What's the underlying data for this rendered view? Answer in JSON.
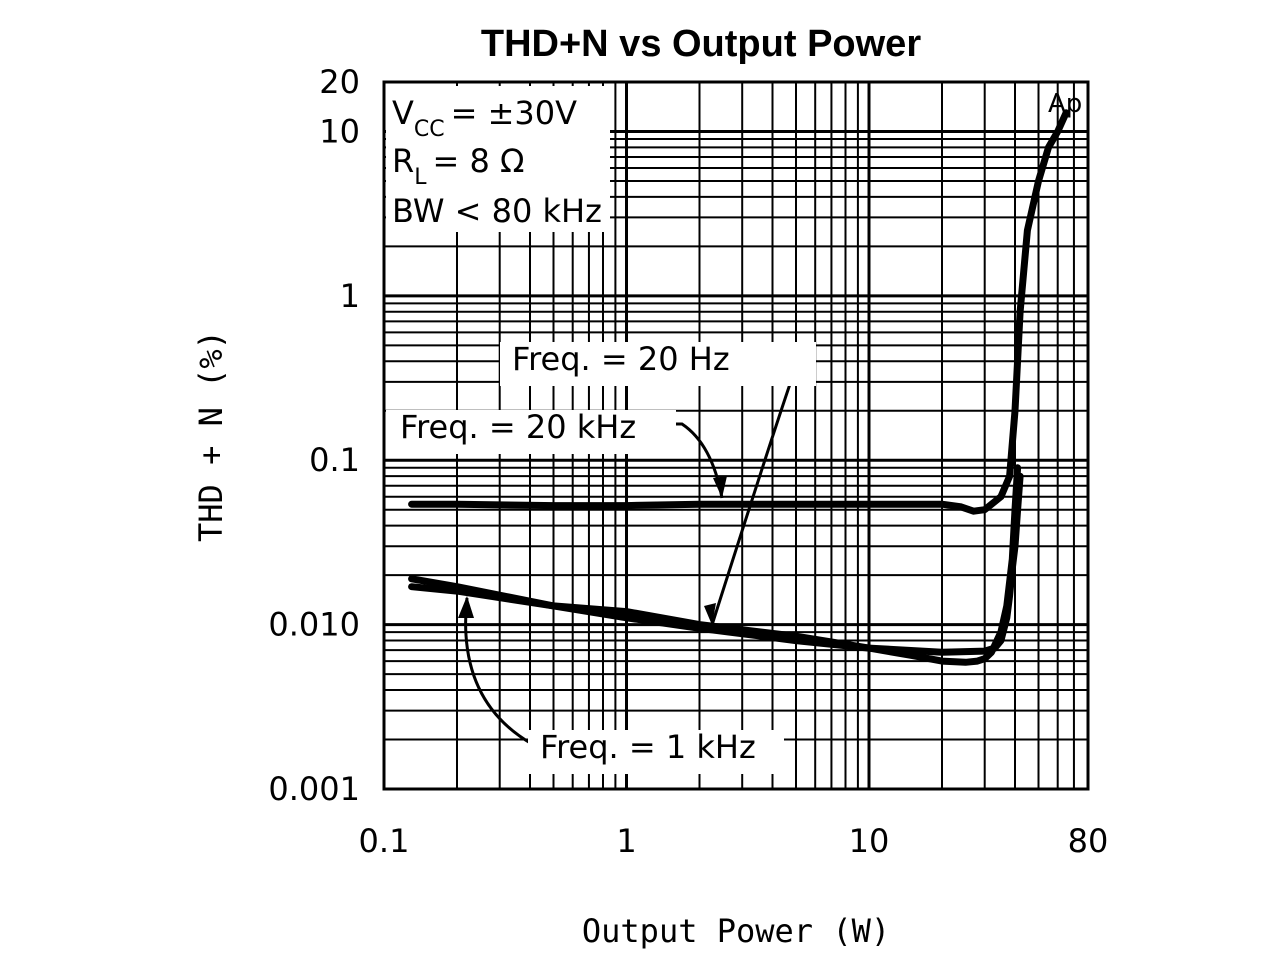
{
  "chart_data": {
    "type": "line",
    "title": "THD+N vs Output Power",
    "xlabel": "Output Power (W)",
    "ylabel": "THD + N (%)",
    "xscale": "log",
    "yscale": "log",
    "xlim": [
      0.1,
      80
    ],
    "ylim": [
      0.001,
      20
    ],
    "grid": true,
    "x_ticks": [
      {
        "value": 0.1,
        "label": "0.1"
      },
      {
        "value": 1,
        "label": "1"
      },
      {
        "value": 10,
        "label": "10"
      },
      {
        "value": 80,
        "label": "80"
      }
    ],
    "y_ticks": [
      {
        "value": 20,
        "label": "20"
      },
      {
        "value": 10,
        "label": "10"
      },
      {
        "value": 1,
        "label": "1"
      },
      {
        "value": 0.1,
        "label": "0.1"
      },
      {
        "value": 0.01,
        "label": "0.010"
      },
      {
        "value": 0.001,
        "label": "0.001"
      }
    ],
    "conditions": {
      "vcc_main": "V",
      "vcc_sub": "CC",
      "vcc_value": "= ±30V",
      "rl_main": "R",
      "rl_sub": "L",
      "rl_value": "= 8 Ω",
      "bw": "BW < 80 kHz"
    },
    "corner_mark": "Ap",
    "series": [
      {
        "name": "Freq. = 20 kHz",
        "x": [
          0.13,
          0.2,
          0.5,
          1,
          2,
          5,
          10,
          20,
          24,
          27,
          30,
          35,
          38,
          40,
          42,
          45,
          50,
          55,
          60,
          65
        ],
        "y": [
          0.054,
          0.054,
          0.053,
          0.053,
          0.054,
          0.054,
          0.054,
          0.054,
          0.052,
          0.049,
          0.05,
          0.06,
          0.08,
          0.2,
          0.8,
          2.5,
          5,
          8,
          10,
          13
        ]
      },
      {
        "name": "Freq. = 20 Hz",
        "x": [
          0.13,
          0.2,
          0.5,
          1,
          2,
          5,
          10,
          20,
          30,
          33,
          35,
          37,
          38,
          39,
          40,
          41,
          42
        ],
        "y": [
          0.019,
          0.017,
          0.013,
          0.011,
          0.0095,
          0.008,
          0.0072,
          0.0068,
          0.0069,
          0.0072,
          0.008,
          0.011,
          0.015,
          0.022,
          0.03,
          0.05,
          0.08
        ]
      },
      {
        "name": "Freq. = 1 kHz",
        "x": [
          0.13,
          0.2,
          0.5,
          1,
          2,
          5,
          10,
          15,
          20,
          25,
          28,
          30,
          32,
          35,
          37,
          39,
          40,
          41
        ],
        "y": [
          0.017,
          0.016,
          0.013,
          0.012,
          0.01,
          0.0085,
          0.0072,
          0.0065,
          0.006,
          0.0059,
          0.006,
          0.0062,
          0.0068,
          0.009,
          0.013,
          0.025,
          0.05,
          0.09
        ]
      }
    ],
    "annotations": [
      {
        "text": "Freq. = 20 Hz",
        "points_to": "Freq. = 20 Hz"
      },
      {
        "text": "Freq. = 20 kHz",
        "points_to": "Freq. = 20 kHz"
      },
      {
        "text": "Freq. = 1 kHz",
        "points_to": "Freq. = 1 kHz"
      }
    ]
  }
}
